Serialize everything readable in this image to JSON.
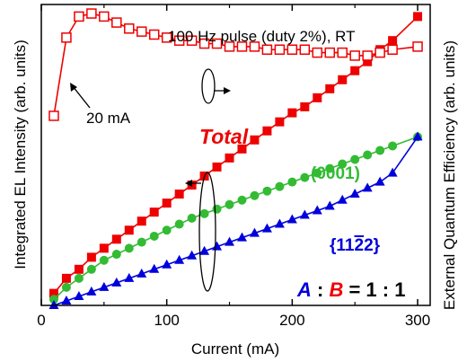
{
  "chart_data": {
    "type": "line",
    "title": "100 Hz pulse (duty 2%), RT",
    "xlabel": "Current (mA)",
    "ylabel_left": "Integrated EL Intensity (arb. units)",
    "ylabel_right": "External Quantum Efficiency (arb. units)",
    "xlim": [
      0,
      310
    ],
    "ylim": [
      0,
      100
    ],
    "x_ticks": [
      "0",
      "100",
      "200",
      "300"
    ],
    "x_tick_values": [
      0,
      100,
      200,
      300
    ],
    "grid": false,
    "annotations": {
      "total": "Total",
      "c_plane": "(0001)",
      "semipolar": "{11",
      "semipolar_bar": "2",
      "semipolar_end": "2}",
      "marker_20ma": "20 mA",
      "ratio_a": "A",
      "ratio_colon1": " : ",
      "ratio_b": "B",
      "ratio_rest": " = 1 : 1"
    },
    "colors": {
      "total": "#ee0000",
      "c_plane": "#33bb33",
      "semipolar": "#0000dd",
      "axis": "#000000"
    },
    "series": [
      {
        "name": "Total",
        "axis": "left",
        "marker": "filled-square",
        "x": [
          10,
          20,
          30,
          40,
          50,
          60,
          70,
          80,
          90,
          100,
          110,
          120,
          130,
          140,
          150,
          160,
          170,
          180,
          190,
          200,
          210,
          220,
          230,
          240,
          250,
          260,
          270,
          280,
          300
        ],
        "y": [
          4,
          9,
          12,
          16,
          19,
          22,
          25,
          28,
          31,
          34,
          37,
          40,
          43,
          46,
          49,
          52,
          55,
          58,
          61,
          64,
          66,
          69,
          72,
          75,
          78,
          81,
          85,
          88,
          96
        ]
      },
      {
        "name": "EQE",
        "axis": "right",
        "marker": "open-square",
        "x": [
          10,
          20,
          30,
          40,
          50,
          60,
          70,
          80,
          90,
          100,
          110,
          120,
          130,
          140,
          150,
          160,
          170,
          180,
          190,
          200,
          210,
          220,
          230,
          240,
          250,
          260,
          270,
          280,
          300
        ],
        "y": [
          63,
          89,
          96,
          97,
          96,
          94,
          92,
          91,
          90,
          89,
          88,
          88,
          87,
          87,
          86,
          86,
          86,
          85,
          85,
          85,
          85,
          84,
          84,
          84,
          83,
          83,
          84,
          85,
          86
        ]
      },
      {
        "name": "(0001)",
        "axis": "left",
        "marker": "filled-circle",
        "x": [
          10,
          20,
          30,
          40,
          50,
          60,
          70,
          80,
          90,
          100,
          110,
          120,
          130,
          140,
          150,
          160,
          170,
          180,
          190,
          200,
          210,
          220,
          230,
          240,
          250,
          260,
          270,
          280,
          300
        ],
        "y": [
          2,
          6,
          9,
          12,
          15,
          17,
          19,
          21,
          23,
          25,
          27,
          29,
          30.5,
          32,
          33.5,
          35,
          36.5,
          38,
          39.5,
          41,
          42.5,
          44,
          45.5,
          47,
          48.5,
          50,
          51.5,
          53,
          56
        ]
      },
      {
        "name": "{11-22}",
        "axis": "left",
        "marker": "filled-triangle",
        "x": [
          10,
          20,
          30,
          40,
          50,
          60,
          70,
          80,
          90,
          100,
          110,
          120,
          130,
          140,
          150,
          160,
          170,
          180,
          190,
          200,
          210,
          220,
          230,
          240,
          250,
          260,
          270,
          280,
          300
        ],
        "y": [
          0,
          1.5,
          3,
          4.5,
          6,
          7.5,
          9,
          10.5,
          12,
          13.5,
          15,
          16.5,
          18,
          19.5,
          21,
          22.5,
          24,
          25.5,
          27,
          28.5,
          30,
          31.5,
          33,
          35,
          37,
          39,
          41,
          44,
          56
        ]
      }
    ]
  }
}
